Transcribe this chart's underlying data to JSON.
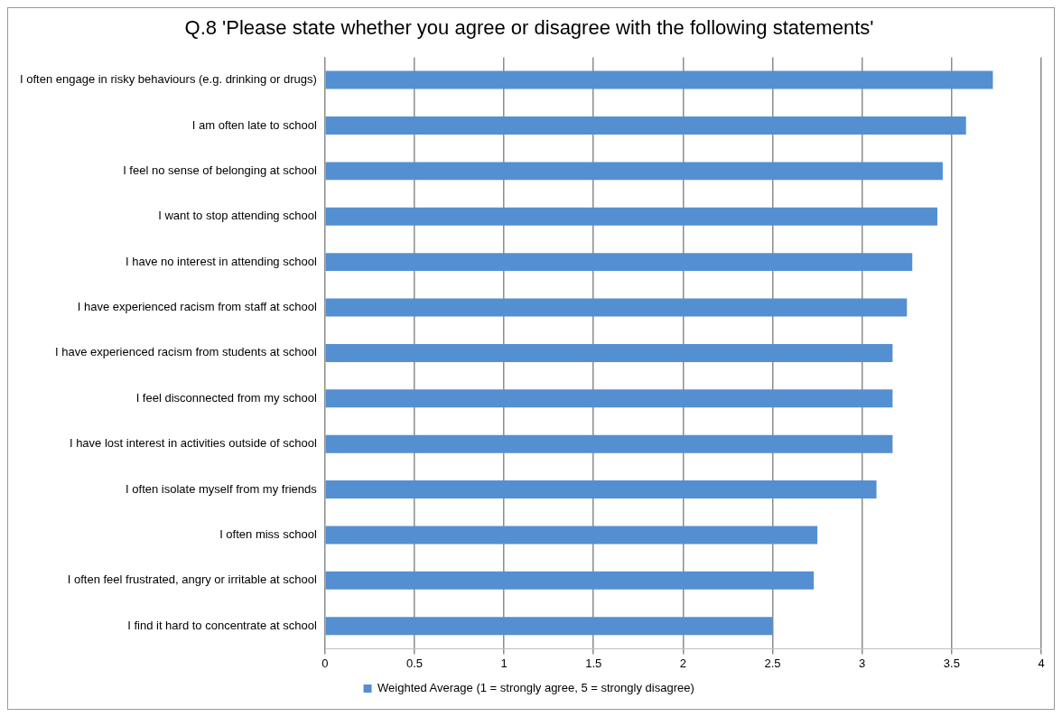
{
  "chart_data": {
    "type": "bar",
    "orientation": "horizontal",
    "title": "Q.8 'Please state whether you agree or disagree with the following statements'",
    "categories": [
      "I often engage in risky behaviours (e.g. drinking or drugs)",
      "I am often late to school",
      "I feel no sense of belonging at school",
      "I want to stop attending school",
      "I have no interest in attending school",
      "I have experienced racism from staff at school",
      "I have experienced racism from students at school",
      "I feel disconnected from my school",
      "I have lost interest in activities outside of school",
      "I often isolate myself from my friends",
      "I often miss school",
      "I often feel frustrated, angry or irritable at school",
      "I find it hard to concentrate at school"
    ],
    "series": [
      {
        "name": "Weighted Average (1 = strongly agree, 5 = strongly disagree)",
        "color": "#548fd2",
        "values": [
          3.73,
          3.58,
          3.45,
          3.42,
          3.28,
          3.25,
          3.17,
          3.17,
          3.17,
          3.08,
          2.75,
          2.73,
          2.5
        ]
      }
    ],
    "xlim": [
      0,
      4
    ],
    "xticks": [
      0,
      0.5,
      1,
      1.5,
      2,
      2.5,
      3,
      3.5,
      4
    ],
    "grid": "x",
    "legend": "bottom"
  }
}
